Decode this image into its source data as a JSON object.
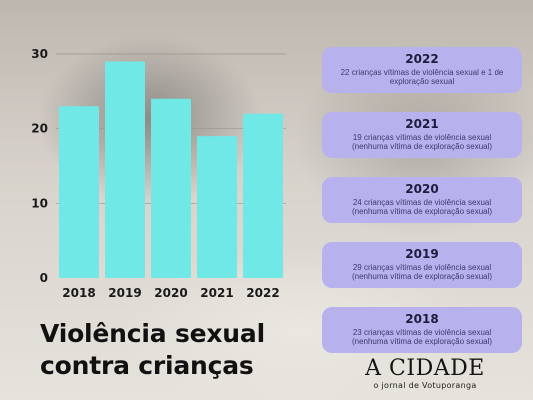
{
  "chart_data": {
    "type": "bar",
    "categories": [
      "2018",
      "2019",
      "2020",
      "2021",
      "2022"
    ],
    "values": [
      23,
      29,
      24,
      19,
      22
    ],
    "ylim": [
      0,
      30
    ],
    "yticks": [
      0,
      10,
      20,
      30
    ],
    "grid": true,
    "colors": {
      "bar": "#6fe8e6",
      "grid": "#9a958f"
    }
  },
  "headline": {
    "line1": "Violência sexual",
    "line2": "contra crianças"
  },
  "cards": [
    {
      "year": "2022",
      "text": "22 crianças vítimas de violência sexual e 1 de exploração sexual"
    },
    {
      "year": "2021",
      "text": "19 crianças vítimas de violência sexual (nenhuma vítima de exploração sexual)"
    },
    {
      "year": "2020",
      "text": "24 crianças vítimas de violência sexual (nenhuma vítima de exploração sexual)"
    },
    {
      "year": "2019",
      "text": "29 crianças vítimas de violência sexual (nenhuma vítima de exploração sexual)"
    },
    {
      "year": "2018",
      "text": "23 crianças vítimas de violência sexual (nenhuma vítima de exploração sexual)"
    }
  ],
  "logo": {
    "name": "A CIDADE",
    "tagline": "o jornal de Votuporanga"
  }
}
